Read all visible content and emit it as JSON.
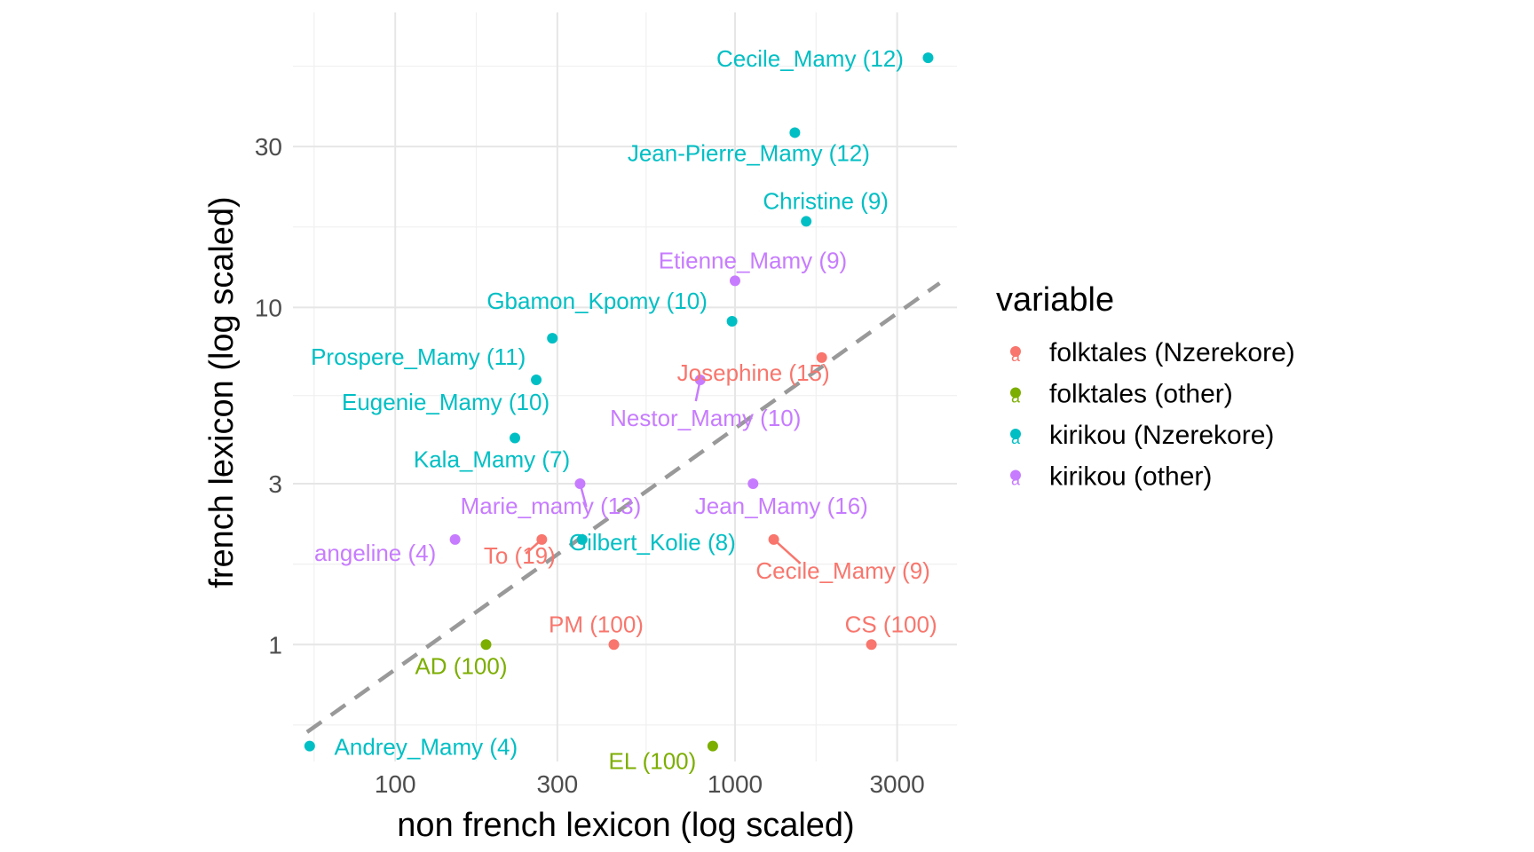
{
  "chart_data": {
    "type": "scatter",
    "xlabel": "non french lexicon (log scaled)",
    "ylabel": "french lexicon (log scaled)",
    "x_scale": "log",
    "y_scale": "log",
    "xlim": [
      50,
      4500
    ],
    "ylim": [
      0.45,
      75
    ],
    "x_ticks": [
      {
        "value": 100,
        "label": "100"
      },
      {
        "value": 300,
        "label": "300"
      },
      {
        "value": 1000,
        "label": "1000"
      },
      {
        "value": 3000,
        "label": "3000"
      }
    ],
    "y_ticks": [
      {
        "value": 1,
        "label": "1"
      },
      {
        "value": 3,
        "label": "3"
      },
      {
        "value": 10,
        "label": "10"
      },
      {
        "value": 30,
        "label": "30"
      }
    ],
    "grid": true,
    "reference_line": {
      "style": "dashed",
      "color": "#999999",
      "from": [
        55,
        0.55
      ],
      "to": [
        4000,
        11.8
      ]
    },
    "legend": {
      "title": "variable",
      "position": "right",
      "entries": [
        {
          "name": "folktales (Nzerekore)",
          "color": "#F8766D"
        },
        {
          "name": "folktales (other)",
          "color": "#7CAE00"
        },
        {
          "name": "kirikou (Nzerekore)",
          "color": "#00BFC4"
        },
        {
          "name": "kirikou (other)",
          "color": "#C77CFF"
        }
      ]
    },
    "series": [
      {
        "name": "folktales (Nzerekore)",
        "color": "#F8766D",
        "points": [
          {
            "x": 1800,
            "y": 7.1,
            "label": "Josephine (15)"
          },
          {
            "x": 1300,
            "y": 2.05,
            "label": "Cecile_Mamy (9)"
          },
          {
            "x": 270,
            "y": 2.05,
            "label": "To (19)"
          },
          {
            "x": 440,
            "y": 1.0,
            "label": "PM (100)"
          },
          {
            "x": 2520,
            "y": 1.0,
            "label": "CS (100)"
          }
        ]
      },
      {
        "name": "folktales (other)",
        "color": "#7CAE00",
        "points": [
          {
            "x": 185,
            "y": 1.0,
            "label": "AD (100)"
          },
          {
            "x": 860,
            "y": 0.5,
            "label": "EL (100)"
          }
        ]
      },
      {
        "name": "kirikou (Nzerekore)",
        "color": "#00BFC4",
        "points": [
          {
            "x": 3700,
            "y": 55,
            "label": "Cecile_Mamy (12)"
          },
          {
            "x": 1500,
            "y": 33,
            "label": "Jean-Pierre_Mamy (12)"
          },
          {
            "x": 1620,
            "y": 18,
            "label": "Christine (9)"
          },
          {
            "x": 980,
            "y": 9.1,
            "label": "Gbamon_Kpomy (10)"
          },
          {
            "x": 290,
            "y": 8.1,
            "label": "Prospere_Mamy (11)"
          },
          {
            "x": 260,
            "y": 6.1,
            "label": "Eugenie_Mamy (10)"
          },
          {
            "x": 225,
            "y": 4.1,
            "label": "Kala_Mamy (7)"
          },
          {
            "x": 355,
            "y": 2.05,
            "label": "Gilbert_Kolie (8)"
          },
          {
            "x": 56,
            "y": 0.5,
            "label": "Andrey_Mamy (4)"
          }
        ]
      },
      {
        "name": "kirikou (other)",
        "color": "#C77CFF",
        "points": [
          {
            "x": 1000,
            "y": 12,
            "label": "Etienne_Mamy (9)"
          },
          {
            "x": 790,
            "y": 6.1,
            "label": "Nestor_Mamy (10)"
          },
          {
            "x": 350,
            "y": 3.0,
            "label": "Marie_mamy (13)"
          },
          {
            "x": 1130,
            "y": 3.0,
            "label": "Jean_Mamy (16)"
          },
          {
            "x": 150,
            "y": 2.05,
            "label": "angeline (4)"
          }
        ]
      }
    ]
  }
}
